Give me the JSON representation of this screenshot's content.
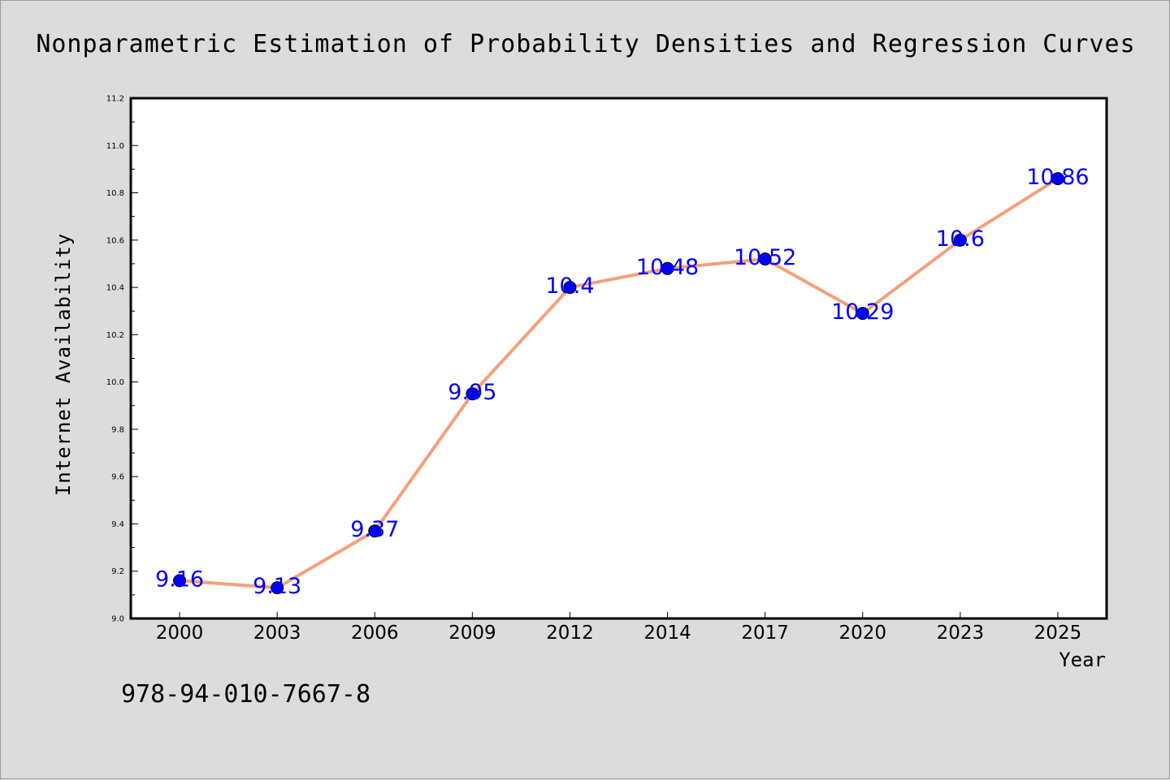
{
  "chart_data": {
    "type": "line",
    "title": "Nonparametric Estimation of Probability Densities and Regression Curves",
    "xlabel": "Year",
    "ylabel": "Internet Availability",
    "categories": [
      "2000",
      "2003",
      "2006",
      "2009",
      "2012",
      "2014",
      "2017",
      "2020",
      "2023",
      "2025"
    ],
    "series": [
      {
        "values": [
          9.16,
          9.13,
          9.37,
          9.95,
          10.4,
          10.48,
          10.52,
          10.29,
          10.6,
          10.86
        ],
        "labels": [
          "9.16",
          "9.13",
          "9.37",
          "9.95",
          "10.4",
          "10.48",
          "10.52",
          "10.29",
          "10.6",
          "10.86"
        ],
        "line_color": "#f4a07a",
        "marker_color": "#0000ff"
      }
    ],
    "ylim": [
      9.0,
      11.2
    ],
    "yticks": [
      "9.0",
      "9.2",
      "9.4",
      "9.6",
      "9.8",
      "10.0",
      "10.2",
      "10.4",
      "10.6",
      "10.8",
      "11.0",
      "11.2"
    ],
    "grid": false,
    "legend": "none"
  },
  "annotation": "978-94-010-7667-8",
  "colors": {
    "background": "#dcdcdc",
    "plot_background": "#ffffff",
    "line": "#f4a07a",
    "marker": "#0000ff",
    "data_label": "#0000ff"
  }
}
